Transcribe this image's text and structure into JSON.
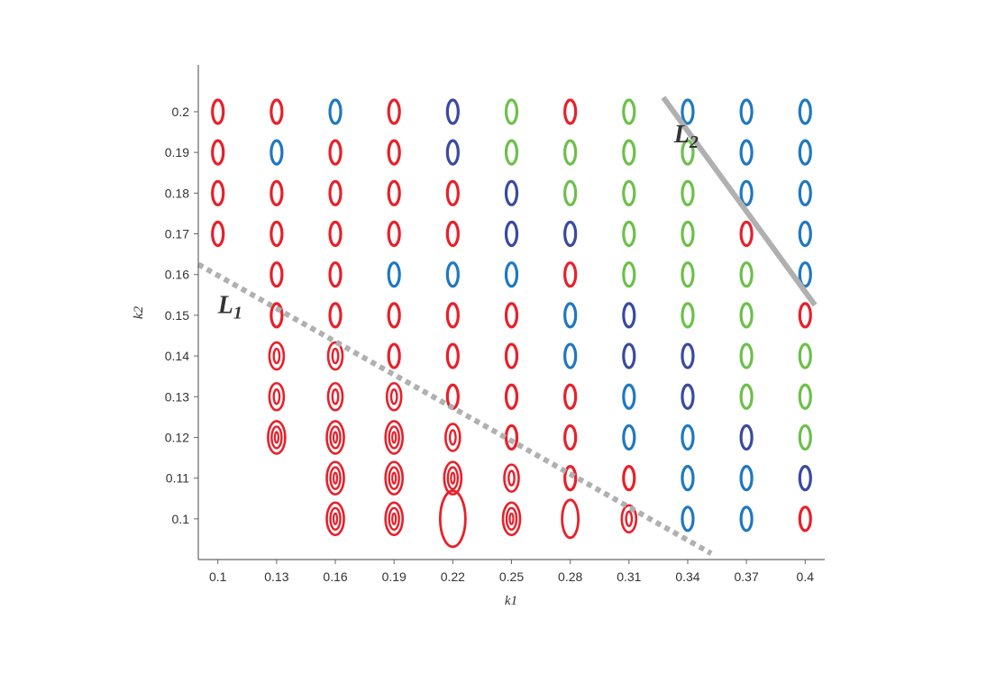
{
  "colors": {
    "red": "#e8202a",
    "blue": "#1f78c0",
    "darkblue": "#3a4aa0",
    "green": "#6cc04a",
    "line": "#b0b0b0",
    "axis": "#666666"
  },
  "chart_data": {
    "type": "scatter",
    "xlabel": "k1",
    "ylabel": "k2",
    "xlim": [
      0.09,
      0.41
    ],
    "ylim": [
      0.09,
      0.2115
    ],
    "x_ticks": [
      "0.1",
      "0.13",
      "0.16",
      "0.19",
      "0.22",
      "0.25",
      "0.28",
      "0.31",
      "0.34",
      "0.37",
      "0.4"
    ],
    "y_ticks": [
      "0.1",
      "0.11",
      "0.12",
      "0.13",
      "0.14",
      "0.15",
      "0.16",
      "0.17",
      "0.18",
      "0.19",
      "0.2"
    ],
    "grid": false,
    "x_values": [
      0.1,
      0.13,
      0.16,
      0.19,
      0.22,
      0.25,
      0.28,
      0.31,
      0.34,
      0.37,
      0.4
    ],
    "y_values": [
      0.2,
      0.19,
      0.18,
      0.17,
      0.16,
      0.15,
      0.14,
      0.13,
      0.12,
      0.11,
      0.1
    ],
    "marker_legend": {
      "r": "red single loop",
      "b": "blue single loop",
      "d": "dark blue single loop",
      "g": "green single loop",
      "R2": "red double loop",
      "R3": "red triple loop",
      "RL": "red large single loop",
      "RM": "red medium single loop",
      "-": "no marker"
    },
    "grid_markers": [
      [
        "r",
        "r",
        "b",
        "r",
        "d",
        "g",
        "r",
        "g",
        "b",
        "b",
        "b"
      ],
      [
        "r",
        "b",
        "r",
        "r",
        "d",
        "g",
        "g",
        "g",
        "g",
        "b",
        "b"
      ],
      [
        "r",
        "r",
        "r",
        "r",
        "r",
        "d",
        "g",
        "g",
        "g",
        "b",
        "b"
      ],
      [
        "r",
        "r",
        "r",
        "r",
        "r",
        "d",
        "d",
        "g",
        "g",
        "r",
        "b"
      ],
      [
        "-",
        "r",
        "r",
        "b",
        "b",
        "b",
        "r",
        "g",
        "g",
        "g",
        "b"
      ],
      [
        "-",
        "r",
        "r",
        "r",
        "r",
        "r",
        "b",
        "d",
        "g",
        "g",
        "r"
      ],
      [
        "-",
        "R2",
        "R2",
        "r",
        "r",
        "r",
        "b",
        "d",
        "d",
        "g",
        "g"
      ],
      [
        "-",
        "R2",
        "R2",
        "R2",
        "r",
        "r",
        "r",
        "b",
        "d",
        "g",
        "g"
      ],
      [
        "-",
        "R3",
        "R3",
        "R3",
        "R2",
        "r",
        "r",
        "b",
        "b",
        "d",
        "g"
      ],
      [
        "-",
        "-",
        "R3",
        "R3",
        "R3",
        "R2",
        "r",
        "r",
        "b",
        "b",
        "d"
      ],
      [
        "-",
        "-",
        "R3",
        "R3",
        "RL",
        "R3",
        "RM",
        "R2",
        "b",
        "b",
        "r"
      ]
    ],
    "lines": [
      {
        "name": "L",
        "subscript": "1",
        "style": "dotted",
        "points": [
          [
            0.09,
            0.1625
          ],
          [
            0.352,
            0.0915
          ]
        ],
        "label_at": [
          0.1,
          0.1505
        ]
      },
      {
        "name": "L",
        "subscript": "2",
        "style": "solid",
        "points": [
          [
            0.3275,
            0.2035
          ],
          [
            0.405,
            0.1525
          ]
        ],
        "label_at": [
          0.333,
          0.1925
        ]
      }
    ]
  }
}
